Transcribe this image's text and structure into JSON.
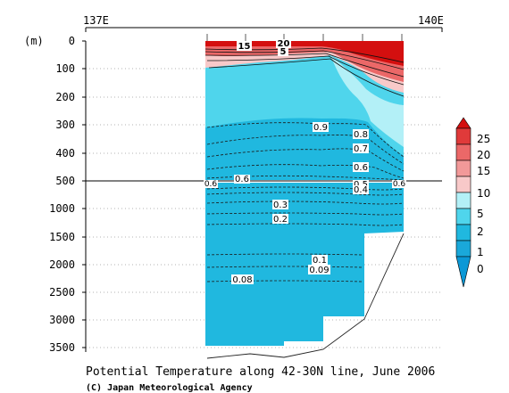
{
  "chart_data": {
    "type": "heatmap",
    "title": "Potential Temperature along 42-30N line, June 2006",
    "credit": "(C) Japan Meteorological Agency",
    "ylabel": "(m)",
    "x_ticks": [
      "137E",
      "140E"
    ],
    "y_ticks_upper": [
      "0",
      "100",
      "200",
      "300",
      "400",
      "500"
    ],
    "y_ticks_lower": [
      "1000",
      "1500",
      "2000",
      "2500",
      "3000",
      "3500"
    ],
    "y_break_depth": 500,
    "xlim": [
      137,
      140
    ],
    "contour_labels": [
      {
        "text": "15",
        "x": 138.65,
        "depth": 15
      },
      {
        "text": "20",
        "x": 138.95,
        "depth": 5
      },
      {
        "text": "5",
        "x": 138.95,
        "depth": 35
      },
      {
        "text": "0.9",
        "x": 139.0,
        "depth": 305
      },
      {
        "text": "0.8",
        "x": 139.4,
        "depth": 330
      },
      {
        "text": "0.7",
        "x": 139.4,
        "depth": 385
      },
      {
        "text": "0.6",
        "x": 139.4,
        "depth": 450
      },
      {
        "text": "0.6",
        "x": 138.15,
        "depth": 495
      },
      {
        "text": "0.6",
        "x": 137.0,
        "depth": 505
      },
      {
        "text": "0.6",
        "x": 139.95,
        "depth": 505
      },
      {
        "text": "0.5",
        "x": 139.4,
        "depth": 510
      },
      {
        "text": "0.4",
        "x": 139.4,
        "depth": 550
      },
      {
        "text": "0.3",
        "x": 138.55,
        "depth": 900
      },
      {
        "text": "0.2",
        "x": 138.55,
        "depth": 1150
      },
      {
        "text": "0.1",
        "x": 139.05,
        "depth": 1900
      },
      {
        "text": "0.09",
        "x": 139.05,
        "depth": 2050
      },
      {
        "text": "0.08",
        "x": 138.0,
        "depth": 2250
      }
    ],
    "colorbar": {
      "labels": [
        "25",
        "20",
        "15",
        "10",
        "5",
        "2",
        "1",
        "0"
      ],
      "colors": [
        "#d40f0f",
        "#e03a3a",
        "#eb6868",
        "#f29999",
        "#f8c9c9",
        "#b3f0f7",
        "#4fd5ec",
        "#20b8df",
        "#0b98d6"
      ]
    }
  }
}
